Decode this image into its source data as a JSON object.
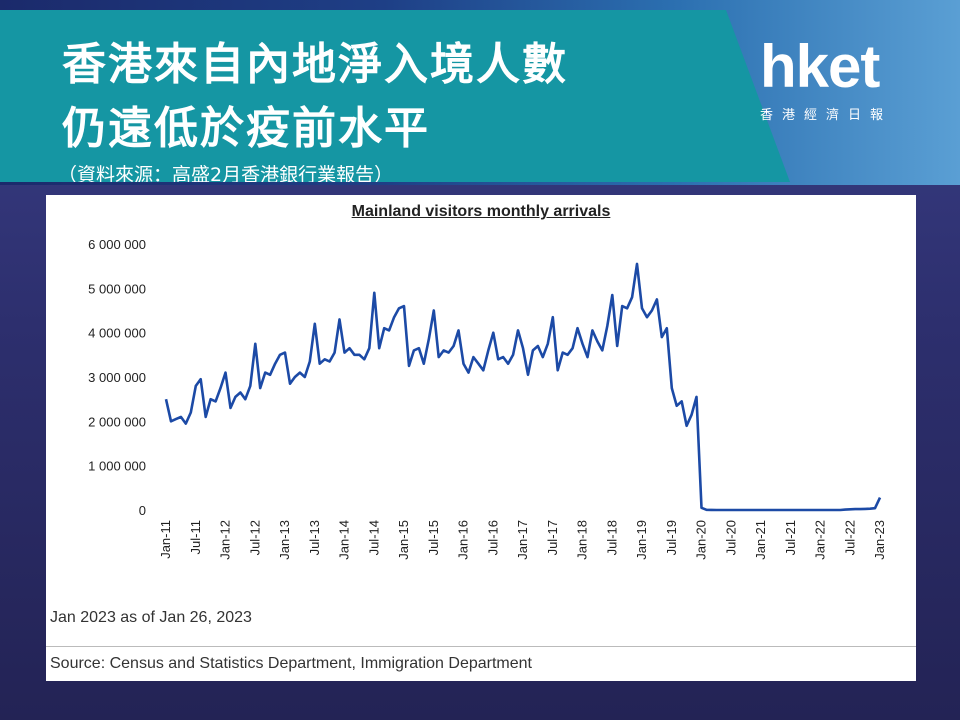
{
  "header": {
    "title_line1": "香港來自內地淨入境人數",
    "title_line2": "仍遠低於疫前水平",
    "source_cn": "（資料來源：高盛2月香港銀行業報告）"
  },
  "logo": {
    "name": "hket",
    "sub": "香港經濟日報"
  },
  "colors": {
    "banner": "#1596a3",
    "line": "#1c4aa6"
  },
  "chart_data": {
    "type": "line",
    "title": "Mainland visitors monthly arrivals",
    "xlabel": "",
    "ylabel": "",
    "ylim": [
      0,
      6000000
    ],
    "yticks": [
      0,
      1000000,
      2000000,
      3000000,
      4000000,
      5000000,
      6000000
    ],
    "ytick_labels": [
      "0",
      "1 000 000",
      "2 000 000",
      "3 000 000",
      "4 000 000",
      "5 000 000",
      "6 000 000"
    ],
    "xtick_labels": [
      "Jan-11",
      "Jul-11",
      "Jan-12",
      "Jul-12",
      "Jan-13",
      "Jul-13",
      "Jan-14",
      "Jul-14",
      "Jan-15",
      "Jul-15",
      "Jan-16",
      "Jul-16",
      "Jan-17",
      "Jul-17",
      "Jan-18",
      "Jul-18",
      "Jan-19",
      "Jul-19",
      "Jan-20",
      "Jul-20",
      "Jan-21",
      "Jul-21",
      "Jan-22",
      "Jul-22",
      "Jan-23"
    ],
    "grid": false,
    "series": [
      {
        "name": "",
        "x": [
          "2011-01",
          "2011-02",
          "2011-03",
          "2011-04",
          "2011-05",
          "2011-06",
          "2011-07",
          "2011-08",
          "2011-09",
          "2011-10",
          "2011-11",
          "2011-12",
          "2012-01",
          "2012-02",
          "2012-03",
          "2012-04",
          "2012-05",
          "2012-06",
          "2012-07",
          "2012-08",
          "2012-09",
          "2012-10",
          "2012-11",
          "2012-12",
          "2013-01",
          "2013-02",
          "2013-03",
          "2013-04",
          "2013-05",
          "2013-06",
          "2013-07",
          "2013-08",
          "2013-09",
          "2013-10",
          "2013-11",
          "2013-12",
          "2014-01",
          "2014-02",
          "2014-03",
          "2014-04",
          "2014-05",
          "2014-06",
          "2014-07",
          "2014-08",
          "2014-09",
          "2014-10",
          "2014-11",
          "2014-12",
          "2015-01",
          "2015-02",
          "2015-03",
          "2015-04",
          "2015-05",
          "2015-06",
          "2015-07",
          "2015-08",
          "2015-09",
          "2015-10",
          "2015-11",
          "2015-12",
          "2016-01",
          "2016-02",
          "2016-03",
          "2016-04",
          "2016-05",
          "2016-06",
          "2016-07",
          "2016-08",
          "2016-09",
          "2016-10",
          "2016-11",
          "2016-12",
          "2017-01",
          "2017-02",
          "2017-03",
          "2017-04",
          "2017-05",
          "2017-06",
          "2017-07",
          "2017-08",
          "2017-09",
          "2017-10",
          "2017-11",
          "2017-12",
          "2018-01",
          "2018-02",
          "2018-03",
          "2018-04",
          "2018-05",
          "2018-06",
          "2018-07",
          "2018-08",
          "2018-09",
          "2018-10",
          "2018-11",
          "2018-12",
          "2019-01",
          "2019-02",
          "2019-03",
          "2019-04",
          "2019-05",
          "2019-06",
          "2019-07",
          "2019-08",
          "2019-09",
          "2019-10",
          "2019-11",
          "2019-12",
          "2020-01",
          "2020-02",
          "2020-03",
          "2020-04",
          "2020-05",
          "2020-06",
          "2020-07",
          "2020-08",
          "2020-09",
          "2020-10",
          "2020-11",
          "2020-12",
          "2021-01",
          "2021-02",
          "2021-03",
          "2021-04",
          "2021-05",
          "2021-06",
          "2021-07",
          "2021-08",
          "2021-09",
          "2021-10",
          "2021-11",
          "2021-12",
          "2022-01",
          "2022-02",
          "2022-03",
          "2022-04",
          "2022-05",
          "2022-06",
          "2022-07",
          "2022-08",
          "2022-09",
          "2022-10",
          "2022-11",
          "2022-12",
          "2023-01"
        ],
        "values": [
          2500000,
          2000000,
          2050000,
          2100000,
          1950000,
          2200000,
          2800000,
          2950000,
          2100000,
          2500000,
          2450000,
          2750000,
          3100000,
          2300000,
          2550000,
          2650000,
          2500000,
          2800000,
          3750000,
          2750000,
          3100000,
          3050000,
          3300000,
          3500000,
          3550000,
          2850000,
          3000000,
          3100000,
          3000000,
          3350000,
          4200000,
          3300000,
          3400000,
          3350000,
          3550000,
          4300000,
          3550000,
          3650000,
          3500000,
          3500000,
          3400000,
          3650000,
          4900000,
          3650000,
          4100000,
          4050000,
          4350000,
          4550000,
          4600000,
          3250000,
          3600000,
          3650000,
          3300000,
          3850000,
          4500000,
          3450000,
          3600000,
          3550000,
          3700000,
          4050000,
          3300000,
          3100000,
          3450000,
          3300000,
          3150000,
          3600000,
          4000000,
          3400000,
          3450000,
          3300000,
          3500000,
          4050000,
          3650000,
          3050000,
          3600000,
          3700000,
          3450000,
          3750000,
          4350000,
          3150000,
          3550000,
          3500000,
          3650000,
          4100000,
          3750000,
          3450000,
          4050000,
          3800000,
          3600000,
          4150000,
          4850000,
          3700000,
          4600000,
          4550000,
          4800000,
          5550000,
          4550000,
          4350000,
          4500000,
          4750000,
          3900000,
          4100000,
          2750000,
          2350000,
          2450000,
          1900000,
          2150000,
          2550000,
          50000,
          5000,
          2000,
          1000,
          1000,
          1000,
          1000,
          1000,
          1000,
          1000,
          1000,
          1000,
          1000,
          1000,
          1000,
          1000,
          1000,
          1000,
          1000,
          1000,
          1000,
          1000,
          1000,
          1000,
          1000,
          1000,
          1000,
          1000,
          1000,
          10000,
          15000,
          20000,
          20000,
          25000,
          30000,
          40000,
          280000
        ]
      }
    ]
  },
  "notes": {
    "as_of": "Jan 2023 as of Jan 26, 2023",
    "source": "Source: Census and Statistics Department, Immigration Department"
  }
}
